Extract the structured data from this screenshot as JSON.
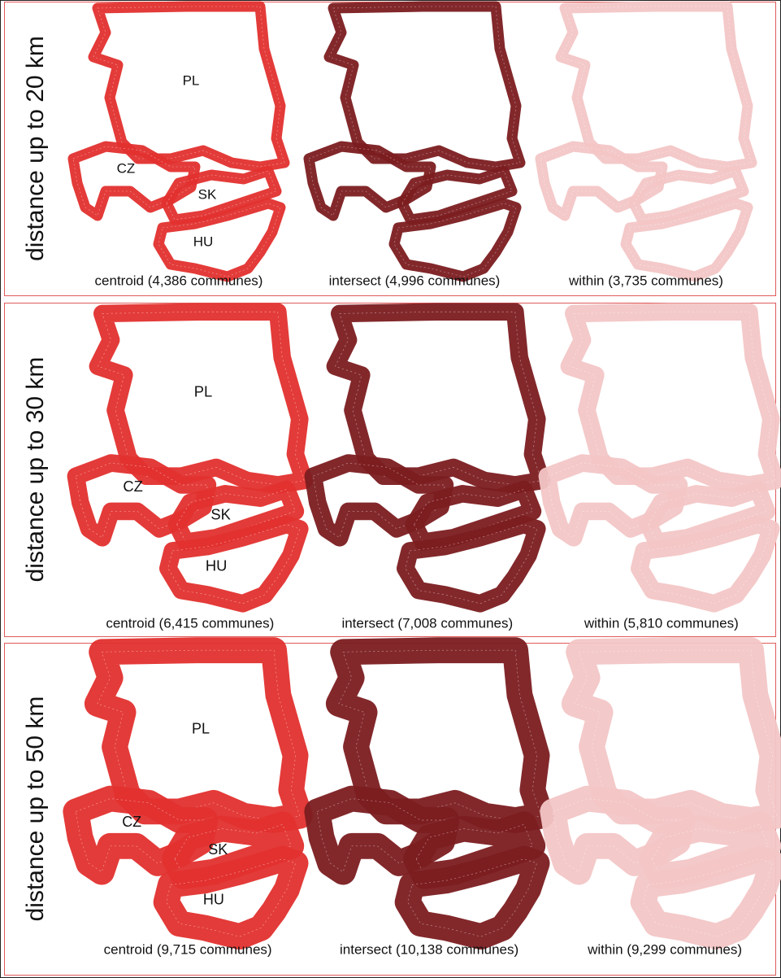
{
  "panels": [
    {
      "label": "distance up to 20 km",
      "maps": [
        {
          "caption": "centroid (4,386 communes)",
          "color": "#e2302e",
          "countries": [
            "PL",
            "CZ",
            "SK",
            "HU"
          ]
        },
        {
          "caption": "intersect (4,996 communes)",
          "color": "#7b1c20"
        },
        {
          "caption": "within (3,735 communes)",
          "color": "#f3c6c6"
        }
      ]
    },
    {
      "label": "distance up to 30 km",
      "maps": [
        {
          "caption": "centroid (6,415 communes)",
          "color": "#e2302e",
          "countries": [
            "PL",
            "CZ",
            "SK",
            "HU"
          ]
        },
        {
          "caption": "intersect (7,008 communes)",
          "color": "#7b1c20"
        },
        {
          "caption": "within (5,810 communes)",
          "color": "#f3c6c6"
        }
      ]
    },
    {
      "label": "distance up to 50 km",
      "maps": [
        {
          "caption": "centroid (9,715 communes)",
          "color": "#e2302e",
          "countries": [
            "PL",
            "CZ",
            "SK",
            "HU"
          ]
        },
        {
          "caption": "intersect (10,138 communes)",
          "color": "#7b1c20"
        },
        {
          "caption": "within (9,299 communes)",
          "color": "#f3c6c6"
        }
      ]
    }
  ]
}
